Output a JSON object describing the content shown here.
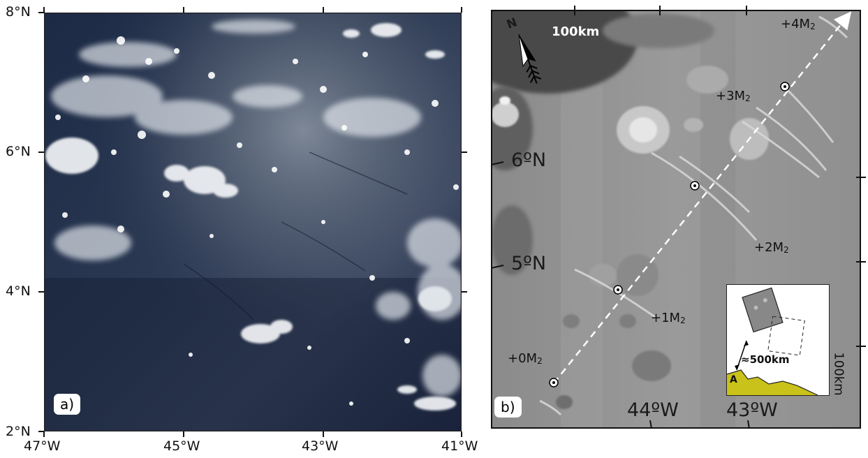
{
  "panel_a": {
    "tag": "a)",
    "lat_labels": [
      "8°N",
      "6°N",
      "4°N",
      "2°N"
    ],
    "lon_labels": [
      "47°W",
      "45°W",
      "43°W",
      "41°W"
    ]
  },
  "panel_b": {
    "tag": "b)",
    "lat_labels": [
      "6ºN",
      "5ºN"
    ],
    "lon_labels": [
      "44ºW",
      "43ºW"
    ],
    "north_label": "N",
    "scale_top": "100km",
    "scale_side": "100km",
    "wave_labels": [
      {
        "base": "+0M",
        "sub": "2"
      },
      {
        "base": "+1M",
        "sub": "2"
      },
      {
        "base": "+2M",
        "sub": "2"
      },
      {
        "base": "+3M",
        "sub": "2"
      },
      {
        "base": "+4M",
        "sub": "2"
      }
    ],
    "inset": {
      "distance": "≈500km",
      "land_label": "A",
      "land_color": "#c9c21a"
    }
  }
}
